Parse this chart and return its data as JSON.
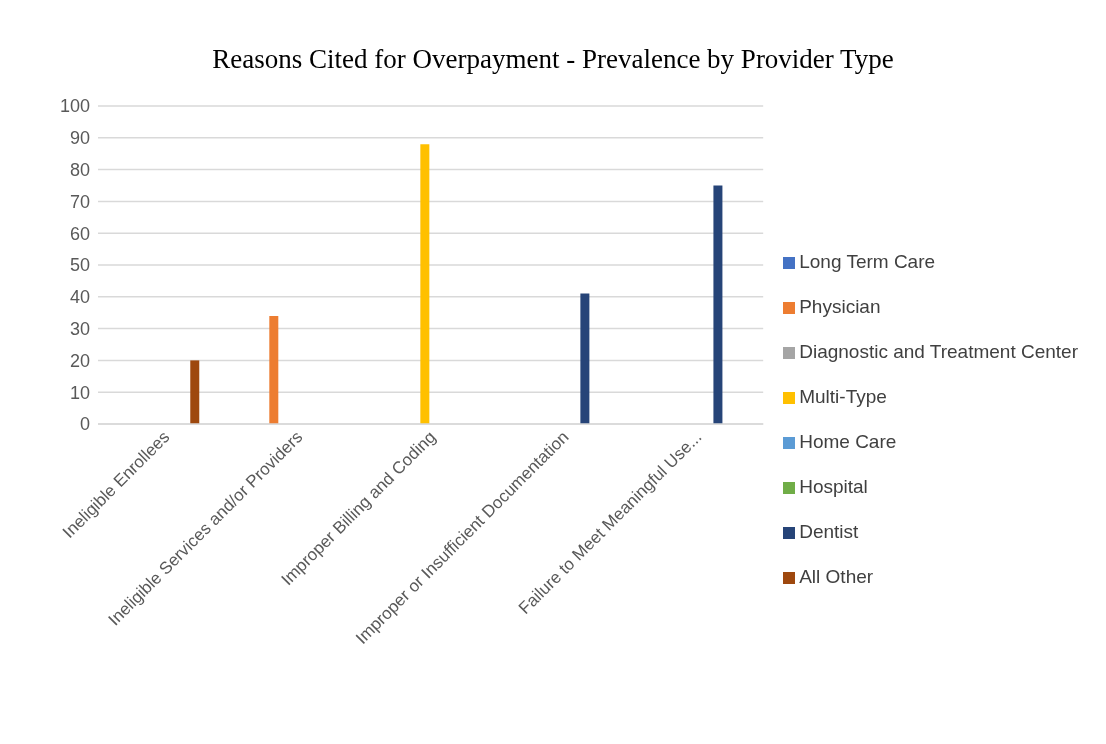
{
  "chart_data": {
    "type": "bar",
    "title": "Reasons Cited for Overpayment - Prevalence by Provider Type",
    "categories": [
      "Ineligible Enrollees",
      "Ineligible Services and/or Providers",
      "Improper Billing and Coding",
      "Improper or Insufficient Documentation",
      "Failure to Meet Meaningful Use..."
    ],
    "series": [
      {
        "name": "Long Term Care",
        "color": "#4472c4",
        "values": [
          null,
          null,
          null,
          null,
          null
        ]
      },
      {
        "name": "Physician",
        "color": "#ed7d31",
        "values": [
          null,
          34,
          null,
          null,
          null
        ]
      },
      {
        "name": "Diagnostic and Treatment Center",
        "color": "#a5a5a5",
        "values": [
          null,
          null,
          null,
          null,
          null
        ]
      },
      {
        "name": "Multi-Type",
        "color": "#ffc000",
        "values": [
          null,
          null,
          88,
          null,
          null
        ]
      },
      {
        "name": "Home Care",
        "color": "#5b9bd5",
        "values": [
          null,
          null,
          null,
          null,
          null
        ]
      },
      {
        "name": "Hospital",
        "color": "#70ad47",
        "values": [
          null,
          null,
          null,
          null,
          null
        ]
      },
      {
        "name": "Dentist",
        "color": "#264478",
        "values": [
          null,
          null,
          null,
          41,
          75
        ]
      },
      {
        "name": "All Other",
        "color": "#9e480e",
        "values": [
          20,
          null,
          null,
          null,
          null
        ]
      }
    ],
    "ylim": [
      0,
      100
    ],
    "yticks": [
      0,
      10,
      20,
      30,
      40,
      50,
      60,
      70,
      80,
      90,
      100
    ],
    "grid": "y",
    "legend": "right"
  }
}
